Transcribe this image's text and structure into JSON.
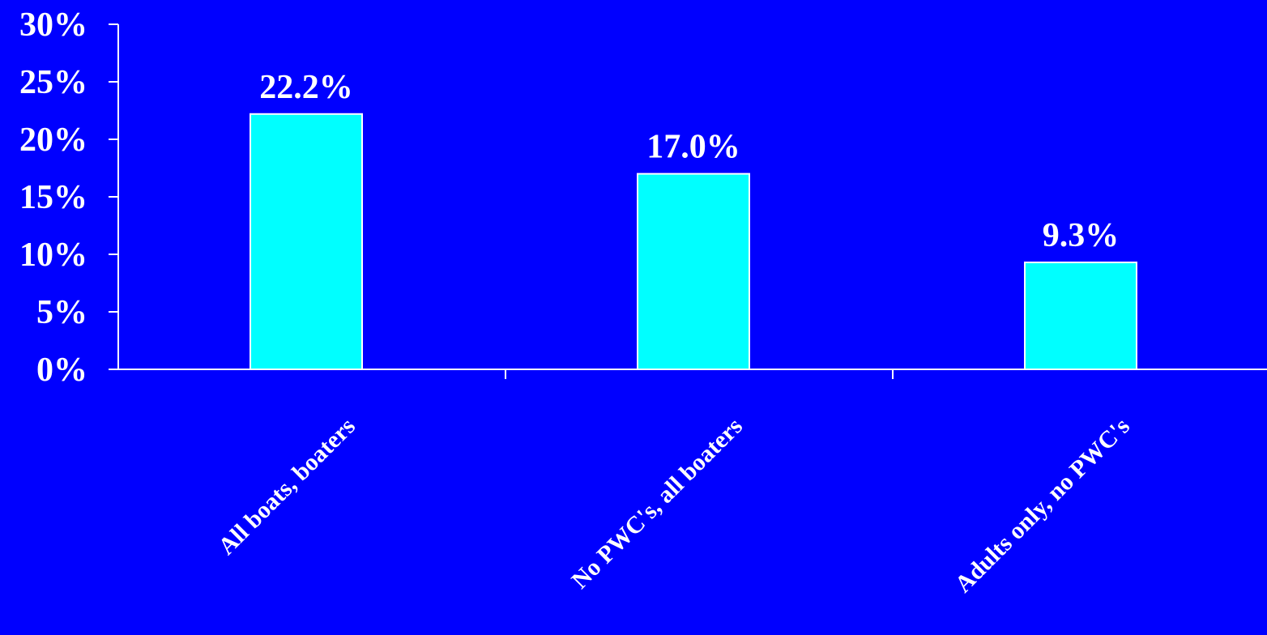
{
  "colors": {
    "background": "#0000FF",
    "bar_fill": "#00FFFF",
    "bar_stroke": "#FFFFFF",
    "axis": "#FFFFFF",
    "text": "#FFFFFF"
  },
  "chart_data": {
    "type": "bar",
    "title": "",
    "xlabel": "",
    "ylabel": "",
    "categories": [
      "All boats, boaters",
      "No PWC's, all boaters",
      "Adults only, no PWC's"
    ],
    "values": [
      22.2,
      17.0,
      9.3
    ],
    "data_labels": [
      "22.2%",
      "17.0%",
      "9.3%"
    ],
    "ylim": [
      0,
      30
    ],
    "yticks": [
      0,
      5,
      10,
      15,
      20,
      25,
      30
    ],
    "ytick_labels": [
      "0%",
      "5%",
      "10%",
      "15%",
      "20%",
      "25%",
      "30%"
    ],
    "grid": false,
    "legend": "none"
  }
}
